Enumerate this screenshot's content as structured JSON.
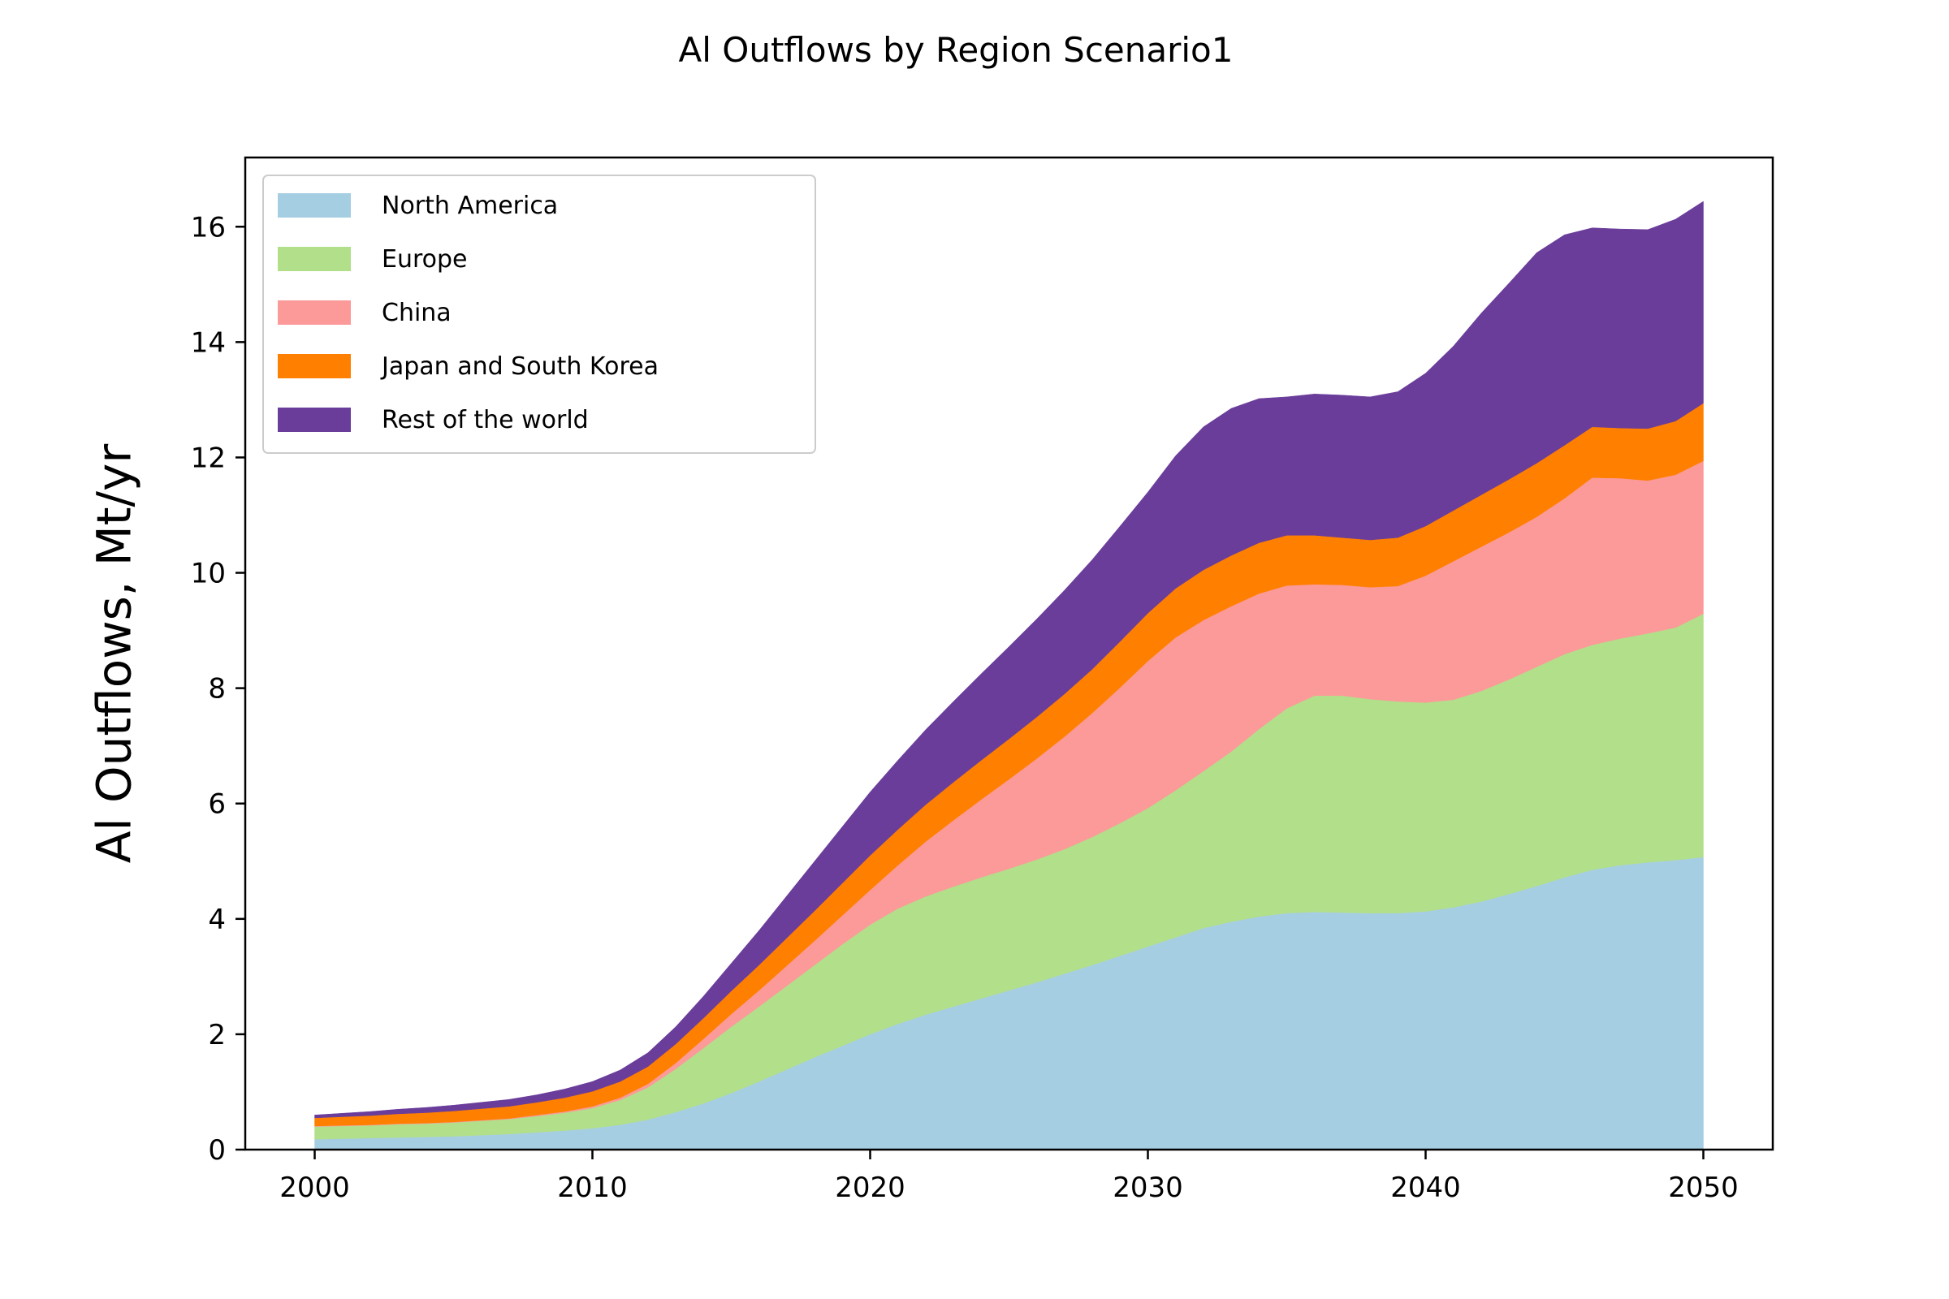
{
  "chart_data": {
    "type": "area",
    "stacked": true,
    "title": "Al Outflows by Region Scenario1",
    "xlabel": "",
    "ylabel": "Al Outflows, Mt/yr",
    "xlim": [
      1997.5,
      2052.5
    ],
    "ylim": [
      0,
      17.2
    ],
    "xticks": [
      2000,
      2010,
      2020,
      2030,
      2040,
      2050
    ],
    "yticks": [
      0,
      2,
      4,
      6,
      8,
      10,
      12,
      14,
      16
    ],
    "grid": false,
    "legend_position": "top-left",
    "x": [
      2000,
      2001,
      2002,
      2003,
      2004,
      2005,
      2006,
      2007,
      2008,
      2009,
      2010,
      2011,
      2012,
      2013,
      2014,
      2015,
      2016,
      2017,
      2018,
      2019,
      2020,
      2021,
      2022,
      2023,
      2024,
      2025,
      2026,
      2027,
      2028,
      2029,
      2030,
      2031,
      2032,
      2033,
      2034,
      2035,
      2036,
      2037,
      2038,
      2039,
      2040,
      2041,
      2042,
      2043,
      2044,
      2045,
      2046,
      2047,
      2048,
      2049,
      2050
    ],
    "series": [
      {
        "name": "North America",
        "color": "#a6cee3",
        "values": [
          0.18,
          0.19,
          0.2,
          0.21,
          0.22,
          0.23,
          0.25,
          0.27,
          0.3,
          0.33,
          0.37,
          0.43,
          0.52,
          0.65,
          0.8,
          0.98,
          1.18,
          1.39,
          1.6,
          1.8,
          2.0,
          2.18,
          2.34,
          2.48,
          2.62,
          2.76,
          2.9,
          3.05,
          3.2,
          3.36,
          3.52,
          3.68,
          3.84,
          3.95,
          4.04,
          4.1,
          4.12,
          4.11,
          4.1,
          4.1,
          4.13,
          4.2,
          4.3,
          4.43,
          4.57,
          4.72,
          4.85,
          4.93,
          4.98,
          5.02,
          5.07
        ]
      },
      {
        "name": "Europe",
        "color": "#b2df8a",
        "values": [
          0.22,
          0.22,
          0.22,
          0.23,
          0.23,
          0.24,
          0.25,
          0.26,
          0.28,
          0.31,
          0.35,
          0.43,
          0.56,
          0.75,
          0.96,
          1.15,
          1.3,
          1.45,
          1.6,
          1.76,
          1.9,
          2.0,
          2.05,
          2.08,
          2.1,
          2.11,
          2.13,
          2.16,
          2.22,
          2.3,
          2.4,
          2.55,
          2.72,
          2.95,
          3.25,
          3.55,
          3.75,
          3.76,
          3.71,
          3.67,
          3.62,
          3.6,
          3.65,
          3.72,
          3.8,
          3.87,
          3.9,
          3.93,
          3.97,
          4.03,
          4.22
        ]
      },
      {
        "name": "China",
        "color": "#fb9a99",
        "values": [
          0.01,
          0.01,
          0.01,
          0.01,
          0.01,
          0.01,
          0.01,
          0.01,
          0.02,
          0.02,
          0.03,
          0.04,
          0.06,
          0.1,
          0.16,
          0.22,
          0.28,
          0.35,
          0.42,
          0.5,
          0.6,
          0.75,
          0.95,
          1.15,
          1.35,
          1.55,
          1.75,
          1.95,
          2.15,
          2.35,
          2.55,
          2.65,
          2.62,
          2.52,
          2.35,
          2.13,
          1.93,
          1.92,
          1.94,
          2.0,
          2.2,
          2.4,
          2.5,
          2.55,
          2.6,
          2.7,
          2.9,
          2.78,
          2.65,
          2.65,
          2.65
        ]
      },
      {
        "name": "Japan and South Korea",
        "color": "#ff7f00",
        "values": [
          0.14,
          0.15,
          0.16,
          0.17,
          0.18,
          0.19,
          0.2,
          0.21,
          0.22,
          0.24,
          0.26,
          0.28,
          0.3,
          0.33,
          0.36,
          0.4,
          0.44,
          0.48,
          0.52,
          0.56,
          0.6,
          0.62,
          0.64,
          0.66,
          0.68,
          0.7,
          0.72,
          0.74,
          0.76,
          0.8,
          0.83,
          0.85,
          0.87,
          0.88,
          0.88,
          0.87,
          0.85,
          0.82,
          0.82,
          0.84,
          0.86,
          0.88,
          0.9,
          0.92,
          0.93,
          0.92,
          0.88,
          0.87,
          0.9,
          0.93,
          1.0
        ]
      },
      {
        "name": "Rest of the world",
        "color": "#6a3d9a",
        "values": [
          0.05,
          0.06,
          0.07,
          0.08,
          0.09,
          0.1,
          0.11,
          0.12,
          0.13,
          0.15,
          0.17,
          0.2,
          0.24,
          0.3,
          0.38,
          0.48,
          0.6,
          0.73,
          0.86,
          0.98,
          1.1,
          1.2,
          1.3,
          1.4,
          1.5,
          1.6,
          1.7,
          1.8,
          1.9,
          2.0,
          2.1,
          2.3,
          2.48,
          2.55,
          2.5,
          2.4,
          2.45,
          2.47,
          2.48,
          2.53,
          2.65,
          2.85,
          3.15,
          3.4,
          3.65,
          3.65,
          3.45,
          3.45,
          3.45,
          3.5,
          3.5
        ]
      }
    ]
  }
}
